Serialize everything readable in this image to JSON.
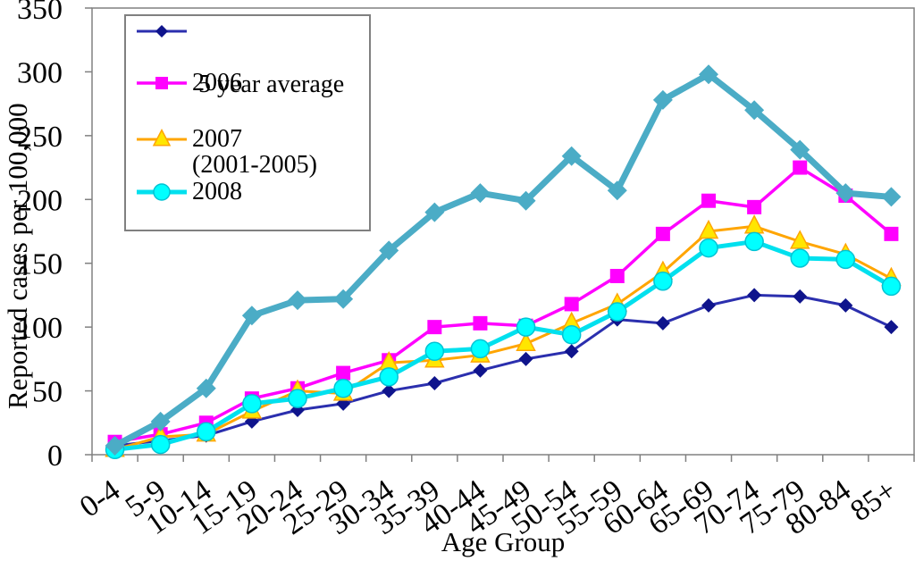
{
  "figure": {
    "y_axis_title": "Reported cases per 100,000",
    "x_axis_title": "Age Group",
    "axis_color": "#808080",
    "background_color": "#ffffff",
    "text_color": "#000000"
  },
  "legend": {
    "entries": [
      {
        "series_id": "avg",
        "label_line1": " 5 year average",
        "label_line2": "(2001-2005)"
      },
      {
        "series_id": "2006",
        "label_line1": "2006",
        "label_line2": ""
      },
      {
        "series_id": "2007",
        "label_line1": "2007",
        "label_line2": ""
      },
      {
        "series_id": "2008",
        "label_line1": "2008",
        "label_line2": ""
      }
    ]
  },
  "chart_data": {
    "type": "line",
    "title": "",
    "xlabel": "Age Group",
    "ylabel": "Reported cases per 100,000",
    "categories": [
      "0-4",
      "5-9",
      "10-14",
      "15-19",
      "20-24",
      "25-29",
      "30-34",
      "35-39",
      "40-44",
      "45-49",
      "50-54",
      "55-59",
      "60-64",
      "65-69",
      "70-74",
      "75-79",
      "80-84",
      "85+"
    ],
    "ylim": [
      0,
      350
    ],
    "yticks": [
      0,
      50,
      100,
      150,
      200,
      250,
      300,
      350
    ],
    "grid": false,
    "legend_position": "top-left",
    "series": [
      {
        "id": "avg",
        "name": "5 year average (2001-2005)",
        "in_legend": true,
        "marker": "diamond",
        "line_color": "#2B2FAE",
        "marker_color": "#0F148C",
        "marker_stroke": "none",
        "line_width": 3,
        "marker_size": 8,
        "values": [
          7,
          11,
          15,
          26,
          35,
          40,
          50,
          56,
          66,
          75,
          81,
          106,
          103,
          117,
          125,
          124,
          117,
          100
        ]
      },
      {
        "id": "2006",
        "name": "2006",
        "in_legend": true,
        "marker": "square",
        "line_color": "#FF00FF",
        "marker_color": "#FF00FF",
        "marker_stroke": "none",
        "line_width": 3.5,
        "marker_size": 8,
        "values": [
          10,
          16,
          25,
          44,
          52,
          64,
          74,
          100,
          103,
          101,
          118,
          140,
          173,
          199,
          194,
          225,
          203,
          173
        ]
      },
      {
        "id": "2007",
        "name": "2007",
        "in_legend": true,
        "marker": "triangle",
        "line_color": "#FFA500",
        "marker_color": "#FFE600",
        "marker_stroke": "#FFA500",
        "line_width": 3,
        "marker_size": 10,
        "values": [
          4,
          14,
          16,
          34,
          50,
          48,
          72,
          74,
          78,
          87,
          103,
          118,
          143,
          175,
          179,
          167,
          157,
          138
        ]
      },
      {
        "id": "2008",
        "name": "2008",
        "in_legend": true,
        "marker": "circle",
        "line_color": "#00E0EE",
        "marker_color": "#00FFFF",
        "marker_stroke": "#00C3D4",
        "line_width": 5,
        "marker_size": 10,
        "values": [
          4,
          8,
          18,
          40,
          44,
          52,
          61,
          81,
          83,
          100,
          94,
          112,
          136,
          162,
          167,
          154,
          153,
          132
        ]
      },
      {
        "id": "unlabeled",
        "name": "",
        "in_legend": false,
        "marker": "diamond",
        "line_color": "#4BACC6",
        "marker_color": "#4BACC6",
        "marker_stroke": "none",
        "line_width": 7,
        "marker_size": 11,
        "values": [
          7,
          26,
          52,
          109,
          121,
          122,
          160,
          190,
          205,
          199,
          234,
          207,
          278,
          298,
          270,
          239,
          205,
          202
        ]
      }
    ]
  }
}
